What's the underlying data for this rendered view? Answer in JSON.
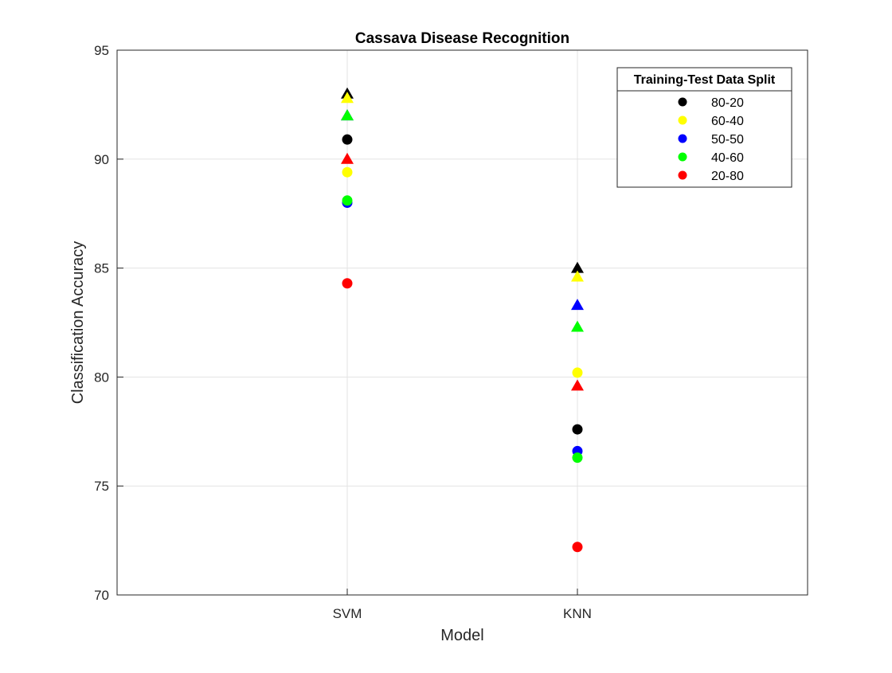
{
  "chart_data": {
    "type": "scatter",
    "title": "Cassava Disease Recognition",
    "xlabel": "Model",
    "ylabel": "Classification Accuracy",
    "categories": [
      "SVM",
      "KNN"
    ],
    "ylim": [
      70,
      95
    ],
    "yticks": [
      70,
      75,
      80,
      85,
      90,
      95
    ],
    "grid": true,
    "legend": {
      "title": "Training-Test Data Split",
      "placement": "top-right",
      "entries": [
        "80-20",
        "60-40",
        "50-50",
        "40-60",
        "20-80"
      ]
    },
    "series": [
      {
        "name": "80-20",
        "color": "#000000",
        "circle": [
          90.9,
          77.6
        ],
        "triangle": [
          93.0,
          85.0
        ]
      },
      {
        "name": "60-40",
        "color": "#ffff00",
        "circle": [
          89.4,
          80.2
        ],
        "triangle": [
          92.8,
          84.6
        ]
      },
      {
        "name": "50-50",
        "color": "#0000ff",
        "circle": [
          88.0,
          76.6
        ],
        "triangle": [
          92.0,
          83.3
        ]
      },
      {
        "name": "40-60",
        "color": "#00ff00",
        "circle": [
          88.1,
          76.3
        ],
        "triangle": [
          92.0,
          82.3
        ]
      },
      {
        "name": "20-80",
        "color": "#ff0000",
        "circle": [
          84.3,
          72.2
        ],
        "triangle": [
          90.0,
          79.6
        ]
      }
    ]
  }
}
